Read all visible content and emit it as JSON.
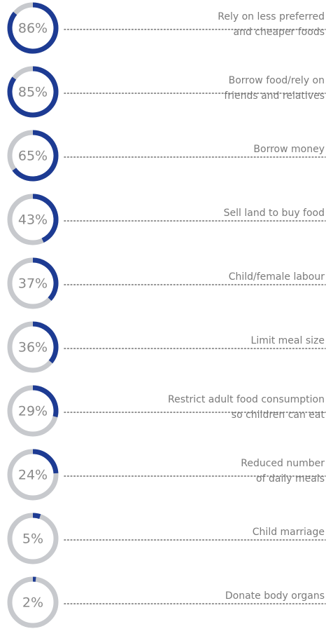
{
  "chart_data": {
    "type": "donut",
    "categories": [
      [
        "Rely on less preferred",
        "and cheaper foods"
      ],
      [
        "Borrow food/rely on",
        "friends and relatives"
      ],
      [
        "Borrow money"
      ],
      [
        "Sell land to buy food"
      ],
      [
        "Child/female labour"
      ],
      [
        "Limit meal size"
      ],
      [
        "Restrict adult food consumption",
        "so children can eat"
      ],
      [
        "Reduced number",
        "of daily meals"
      ],
      [
        "Child marriage"
      ],
      [
        "Donate body organs"
      ]
    ],
    "values": [
      86,
      85,
      65,
      43,
      37,
      36,
      29,
      24,
      5,
      2
    ],
    "value_labels": [
      "86%",
      "85%",
      "65%",
      "43%",
      "37%",
      "36%",
      "29%",
      "24%",
      "5%",
      "2%"
    ],
    "ylim": [
      0,
      100
    ],
    "color": "#1d3b93",
    "track_color": "#c7c9cd"
  }
}
